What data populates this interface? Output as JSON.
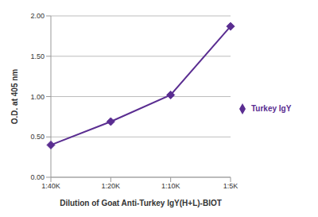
{
  "chart_data": {
    "type": "line",
    "x_label": "Dilution of Goat Anti-Turkey IgY(H+L)-BIOT",
    "y_label": "O.D. at 405 nm",
    "categories": [
      "1:40K",
      "1:20K",
      "1:10K",
      "1:5K"
    ],
    "series": [
      {
        "name": "Turkey IgY",
        "color": "#5a2d91",
        "marker": "diamond",
        "values": [
          0.4,
          0.69,
          1.02,
          1.87
        ]
      }
    ],
    "ylim": [
      0,
      2
    ],
    "yticks": [
      {
        "value": 0,
        "label": "0.00"
      },
      {
        "value": 0.5,
        "label": "0.50"
      },
      {
        "value": 1,
        "label": "1.00"
      },
      {
        "value": 1.5,
        "label": "1.50"
      },
      {
        "value": 2,
        "label": "2.00"
      }
    ],
    "grid": true,
    "legend": "right"
  }
}
